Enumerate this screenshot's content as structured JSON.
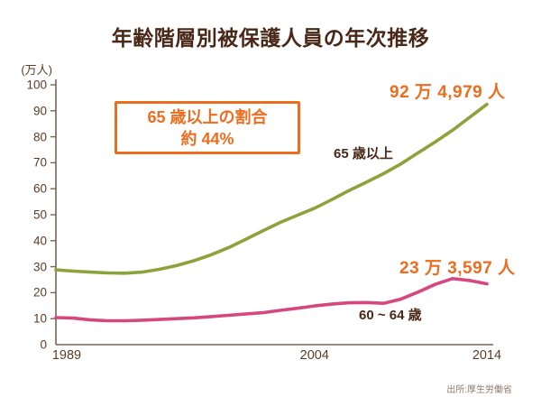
{
  "title": "年齢階層別被保護人員の年次推移",
  "y_unit_label": "(万人)",
  "source": "出所:厚生労働省",
  "annotation": {
    "line1": "65 歳以上の割合",
    "line2": "約 44%"
  },
  "labels": {
    "series1_name": "65 歳以上",
    "series2_name": "60 ~ 64 歳",
    "series1_value": "92 万 4,979 人",
    "series2_value": "23 万 3,597 人"
  },
  "colors": {
    "title_text": "#4A2817",
    "axis_text": "#5C3C28",
    "axis_line": "#7A6555",
    "accent_orange": "#ED6C1E",
    "series1_green": "#8CA33C",
    "series2_pink": "#D6487D",
    "source_text": "#8B7C6F",
    "background": "#FFFFFF"
  },
  "chart_data": {
    "type": "line",
    "title": "年齢階層別被保護人員の年次推移",
    "ylabel": "(万人)",
    "xlabel": "",
    "grid": false,
    "legend_position": "inline-labels",
    "ylim": [
      0,
      100
    ],
    "ytick_step": 10,
    "yticks": [
      0,
      10,
      20,
      30,
      40,
      50,
      60,
      70,
      80,
      90,
      100
    ],
    "xlim": [
      1989,
      2014
    ],
    "xticks_labeled": [
      1989,
      2004,
      2014
    ],
    "x": [
      1989,
      1990,
      1991,
      1992,
      1993,
      1994,
      1995,
      1996,
      1997,
      1998,
      1999,
      2000,
      2001,
      2002,
      2003,
      2004,
      2005,
      2006,
      2007,
      2008,
      2009,
      2010,
      2011,
      2012,
      2013,
      2014
    ],
    "series": [
      {
        "name": "65歳以上",
        "color": "#8CA33C",
        "values": [
          28.8,
          28.3,
          27.9,
          27.6,
          27.5,
          27.9,
          29.0,
          30.4,
          32.3,
          34.6,
          37.3,
          40.5,
          43.8,
          47.0,
          49.8,
          52.5,
          55.8,
          59.3,
          62.5,
          65.8,
          69.5,
          73.8,
          78.0,
          82.5,
          87.5,
          92.5
        ],
        "final_value_persons": 924979,
        "final_value_label": "92 万 4,979 人"
      },
      {
        "name": "60~64歳",
        "color": "#D6487D",
        "values": [
          10.4,
          10.2,
          9.5,
          9.2,
          9.2,
          9.4,
          9.7,
          10.0,
          10.3,
          10.8,
          11.3,
          11.8,
          12.3,
          13.2,
          14.0,
          14.9,
          15.6,
          16.1,
          16.2,
          15.9,
          17.5,
          20.2,
          23.2,
          25.4,
          24.7,
          23.4
        ],
        "final_value_persons": 233597,
        "final_value_label": "23 万 3,597 人"
      }
    ],
    "annotation_box": "65 歳以上の割合 約 44%",
    "source": "出所:厚生労働省"
  }
}
